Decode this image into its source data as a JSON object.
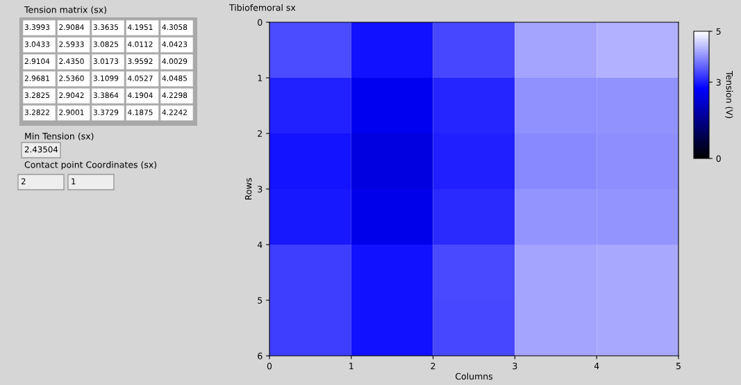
{
  "chart_data": [
    {
      "type": "other",
      "title": "Tension matrix (sx)",
      "annotations": [
        "3.3993",
        "2.9084",
        "3.3635",
        "4.1951",
        "4.3058",
        "3.0433",
        "2.5933",
        "3.0825",
        "4.0112",
        "4.0423",
        "2.9104",
        "2.4350",
        "3.0173",
        "3.9592",
        "4.0029",
        "2.9681",
        "2.5360",
        "3.1099",
        "4.0527",
        "4.0485",
        "3.2825",
        "2.9042",
        "3.3864",
        "4.1904",
        "4.2298",
        "3.2822",
        "2.9001",
        "3.3729",
        "4.1875",
        "4.2242",
        "Min Tension (sx)",
        "2.43504",
        "Contact point Coordinates (sx)",
        "2",
        "1"
      ]
    },
    {
      "type": "heatmap",
      "title": "Tibiofemoral sx",
      "xlabel": "Columns",
      "ylabel": "Rows",
      "clabel": "Tension (V)",
      "xlim": [
        0,
        5
      ],
      "xticks": [
        0,
        1,
        2,
        3,
        4,
        5
      ],
      "ylim": [
        6,
        0
      ],
      "yticks": [
        0,
        1,
        2,
        3,
        4,
        5,
        6
      ],
      "clim": [
        0,
        5
      ],
      "cticks": [
        0,
        3,
        5
      ],
      "cells": [
        [
          3.3993,
          2.9084,
          3.3635,
          4.1951,
          4.3058
        ],
        [
          3.0433,
          2.5933,
          3.0825,
          4.0112,
          4.0423
        ],
        [
          2.9104,
          2.435,
          3.0173,
          3.9592,
          4.0029
        ],
        [
          2.9681,
          2.536,
          3.1099,
          4.0527,
          4.0485
        ],
        [
          3.2825,
          2.9042,
          3.3864,
          4.1904,
          4.2298
        ],
        [
          3.2822,
          2.9001,
          3.3729,
          4.1875,
          4.2242
        ]
      ]
    }
  ]
}
